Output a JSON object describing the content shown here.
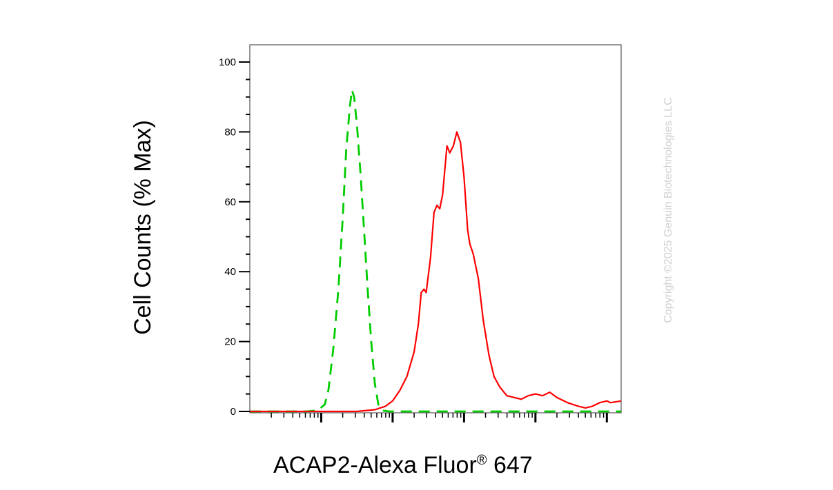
{
  "chart_data": {
    "type": "line",
    "title": "",
    "xlabel_main": "ACAP2-Alexa Fluor",
    "xlabel_mark": "®",
    "xlabel_tail": " 647",
    "ylabel": "Cell Counts (% Max)",
    "xscale": "log",
    "xlim_decades": [
      0,
      5.2
    ],
    "ylim": [
      0,
      105
    ],
    "yticks": [
      0,
      20,
      40,
      60,
      80,
      100
    ],
    "ytick_labels": [
      "0",
      "20",
      "40",
      "60",
      "80",
      "100"
    ],
    "grid": false,
    "series": [
      {
        "color": "#00cc00",
        "dash": "dashed",
        "points": [
          [
            0.0,
            0
          ],
          [
            0.8,
            0
          ],
          [
            0.95,
            0.3
          ],
          [
            1.05,
            2
          ],
          [
            1.1,
            6
          ],
          [
            1.17,
            18
          ],
          [
            1.24,
            35
          ],
          [
            1.3,
            55
          ],
          [
            1.35,
            75
          ],
          [
            1.4,
            87
          ],
          [
            1.43,
            92
          ],
          [
            1.46,
            90
          ],
          [
            1.5,
            82
          ],
          [
            1.55,
            68
          ],
          [
            1.6,
            52
          ],
          [
            1.65,
            35
          ],
          [
            1.7,
            20
          ],
          [
            1.75,
            8
          ],
          [
            1.8,
            2
          ],
          [
            1.85,
            0.3
          ],
          [
            1.95,
            0
          ],
          [
            5.2,
            0
          ]
        ]
      },
      {
        "color": "#ff0000",
        "dash": "solid",
        "points": [
          [
            0.0,
            0
          ],
          [
            1.5,
            0
          ],
          [
            1.75,
            0.5
          ],
          [
            1.9,
            1.5
          ],
          [
            2.0,
            3
          ],
          [
            2.1,
            6
          ],
          [
            2.2,
            10
          ],
          [
            2.3,
            17
          ],
          [
            2.36,
            25
          ],
          [
            2.4,
            34
          ],
          [
            2.44,
            35
          ],
          [
            2.47,
            34
          ],
          [
            2.53,
            44
          ],
          [
            2.58,
            57
          ],
          [
            2.62,
            59
          ],
          [
            2.66,
            58
          ],
          [
            2.7,
            62
          ],
          [
            2.76,
            76
          ],
          [
            2.8,
            74
          ],
          [
            2.85,
            76
          ],
          [
            2.9,
            80
          ],
          [
            2.95,
            77
          ],
          [
            3.0,
            67
          ],
          [
            3.05,
            52
          ],
          [
            3.08,
            48
          ],
          [
            3.13,
            45
          ],
          [
            3.2,
            38
          ],
          [
            3.27,
            26
          ],
          [
            3.35,
            16
          ],
          [
            3.42,
            10
          ],
          [
            3.5,
            7
          ],
          [
            3.6,
            4.5
          ],
          [
            3.7,
            4
          ],
          [
            3.8,
            3.5
          ],
          [
            3.9,
            4.5
          ],
          [
            4.0,
            5
          ],
          [
            4.1,
            4.5
          ],
          [
            4.2,
            5.5
          ],
          [
            4.3,
            4
          ],
          [
            4.45,
            2.5
          ],
          [
            4.6,
            1.5
          ],
          [
            4.7,
            1
          ],
          [
            4.8,
            1.5
          ],
          [
            4.9,
            2.5
          ],
          [
            5.0,
            3
          ],
          [
            5.05,
            2.5
          ],
          [
            5.2,
            3
          ]
        ]
      }
    ]
  },
  "watermark": "Copyright ©2025 Genuin Biotechnologies LLC"
}
